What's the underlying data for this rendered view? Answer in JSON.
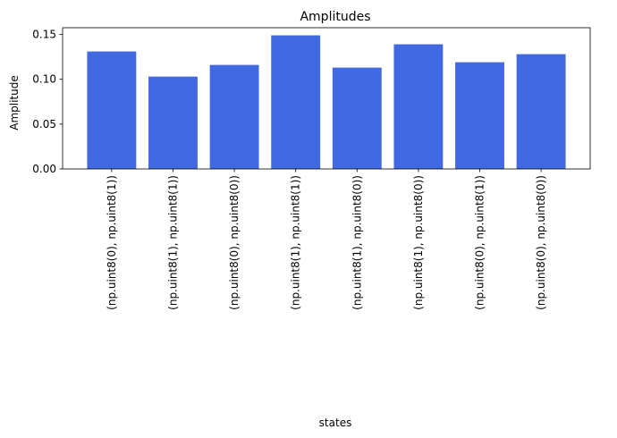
{
  "chart_data": {
    "type": "bar",
    "title": "Amplitudes",
    "xlabel": "states",
    "ylabel": "Amplitude",
    "ylim": [
      0,
      0.1575
    ],
    "yticks": [
      "0.00",
      "0.05",
      "0.10",
      "0.15"
    ],
    "ytick_values": [
      0,
      0.05,
      0.1,
      0.15
    ],
    "grid": false,
    "legend": "none",
    "bar_color": "#4169E1",
    "categories": [
      "(np.uint8(0), np.uint8(1))",
      "(np.uint8(1), np.uint8(1))",
      "(np.uint8(0), np.uint8(0))",
      "(np.uint8(1), np.uint8(1))",
      "(np.uint8(1), np.uint8(0))",
      "(np.uint8(1), np.uint8(0))",
      "(np.uint8(0), np.uint8(1))",
      "(np.uint8(0), np.uint8(0))"
    ],
    "values": [
      0.131,
      0.103,
      0.116,
      0.149,
      0.113,
      0.139,
      0.119,
      0.128
    ]
  }
}
